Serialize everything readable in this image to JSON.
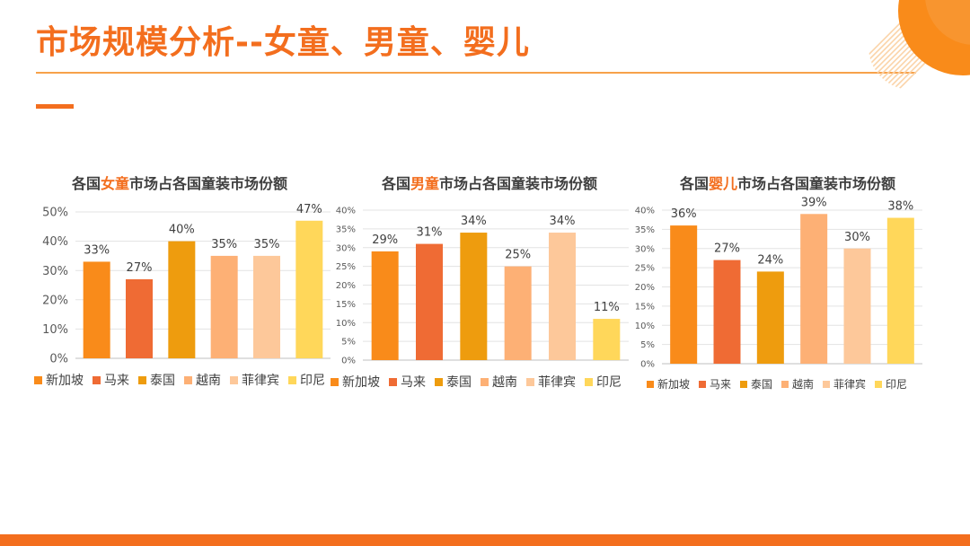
{
  "page": {
    "title": "市场规模分析--女童、男童、婴儿"
  },
  "colors": {
    "accent": "#F36E1E",
    "series": [
      "#F98B1A",
      "#EF6B34",
      "#EE9C0E",
      "#FDB075",
      "#FDC89A",
      "#FFD75A"
    ]
  },
  "charts": [
    {
      "title_pre": "各国",
      "title_hl": "女童",
      "title_post": "市场占各国童装市场份额"
    },
    {
      "title_pre": "各国",
      "title_hl": "男童",
      "title_post": "市场占各国童装市场份额"
    },
    {
      "title_pre": "各国",
      "title_hl": "婴儿",
      "title_post": "市场占各国童装市场份额"
    }
  ],
  "chart_data": [
    {
      "type": "bar",
      "title": "各国女童市场占各国童装市场份额",
      "categories": [
        "新加坡",
        "马来",
        "泰国",
        "越南",
        "菲律宾",
        "印尼"
      ],
      "values": [
        33,
        27,
        40,
        35,
        35,
        47
      ],
      "data_labels": [
        "33%",
        "27%",
        "40%",
        "35%",
        "35%",
        "47%"
      ],
      "ylim": [
        0,
        50
      ],
      "yticks": [
        "0%",
        "10%",
        "20%",
        "30%",
        "40%",
        "50%"
      ],
      "grid": true,
      "legend": "bottom"
    },
    {
      "type": "bar",
      "title": "各国男童市场占各国童装市场份额",
      "categories": [
        "新加坡",
        "马来",
        "泰国",
        "越南",
        "菲律宾",
        "印尼"
      ],
      "values": [
        29,
        31,
        34,
        25,
        34,
        11
      ],
      "data_labels": [
        "29%",
        "31%",
        "34%",
        "25%",
        "34%",
        "11%"
      ],
      "ylim": [
        0,
        40
      ],
      "yticks": [
        "0%",
        "5%",
        "10%",
        "15%",
        "20%",
        "25%",
        "30%",
        "35%",
        "40%"
      ],
      "grid": true,
      "legend": "bottom"
    },
    {
      "type": "bar",
      "title": "各国婴儿市场占各国童装市场份额",
      "categories": [
        "新加坡",
        "马来",
        "泰国",
        "越南",
        "菲律宾",
        "印尼"
      ],
      "values": [
        36,
        27,
        24,
        39,
        30,
        38
      ],
      "data_labels": [
        "36%",
        "27%",
        "24%",
        "39%",
        "30%",
        "38%"
      ],
      "ylim": [
        0,
        40
      ],
      "yticks": [
        "0%",
        "5%",
        "10%",
        "15%",
        "20%",
        "25%",
        "30%",
        "35%",
        "40%"
      ],
      "grid": true,
      "legend": "bottom"
    }
  ]
}
